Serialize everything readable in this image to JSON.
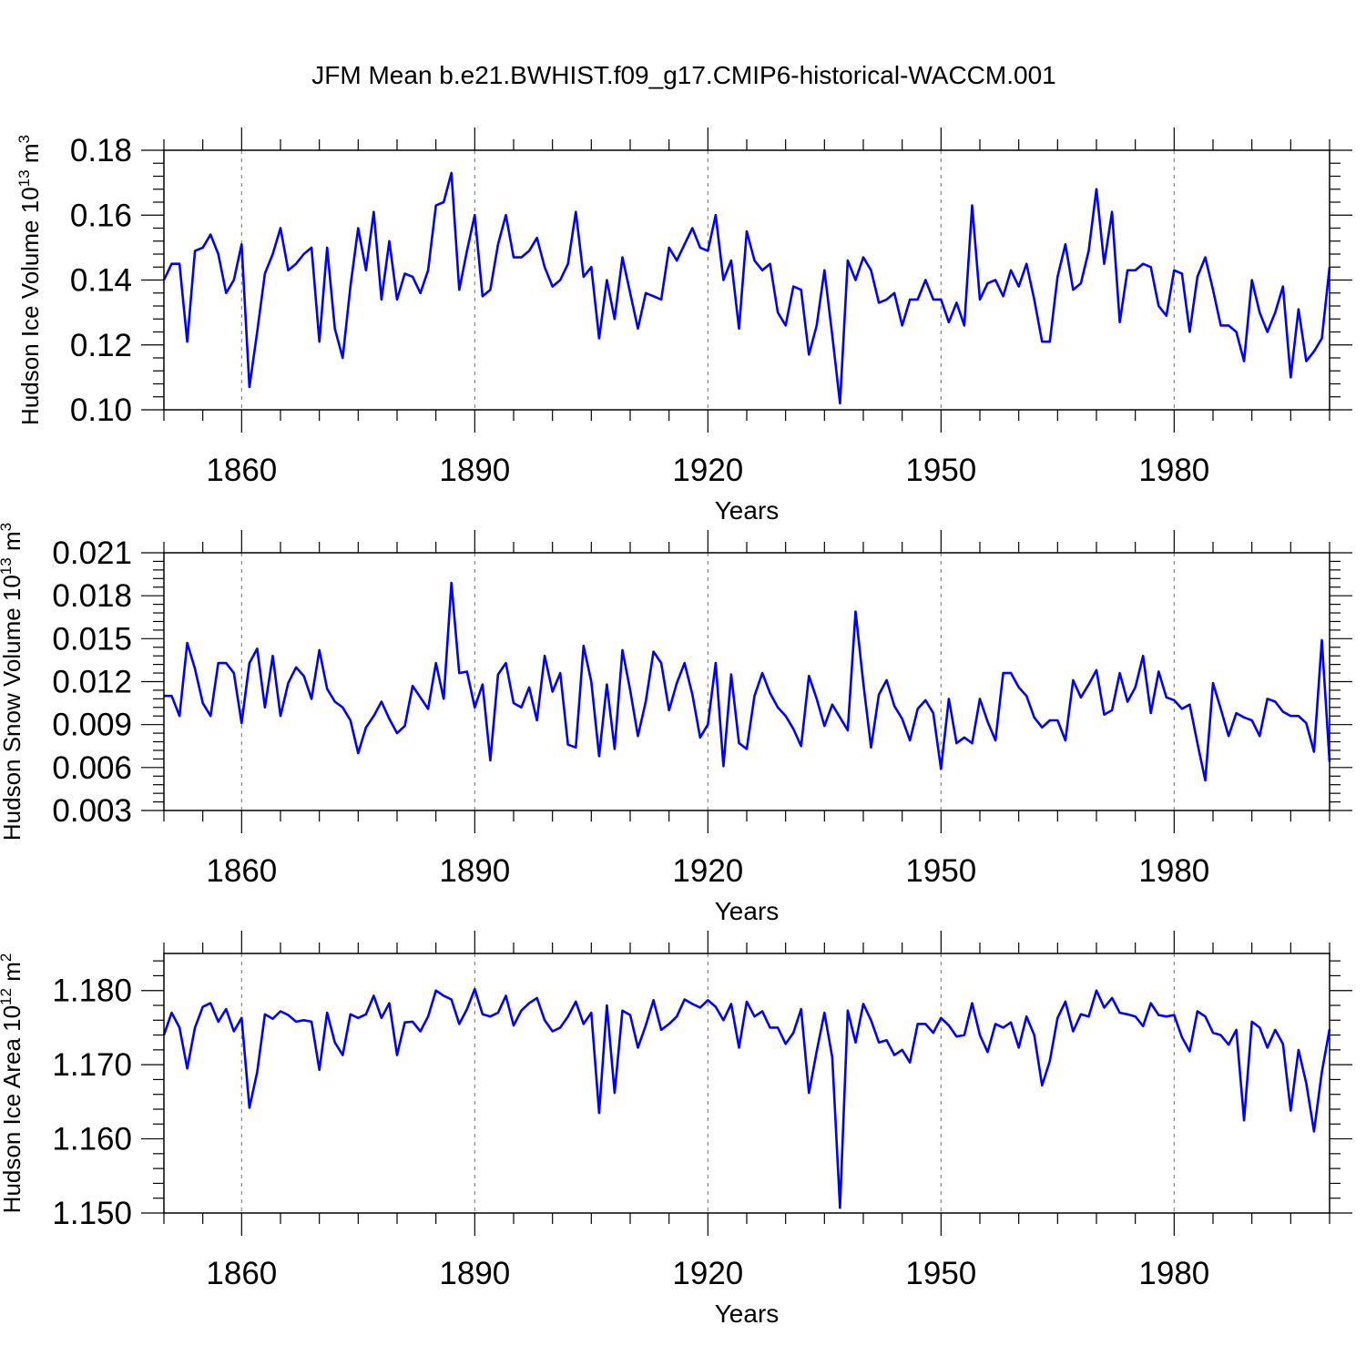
{
  "title": "JFM Mean b.e21.BWHIST.f09_g17.CMIP6-historical-WACCM.001",
  "chart_data": [
    {
      "type": "line",
      "name": "ice-volume",
      "xlabel": "Years",
      "ylabel": "Hudson Ice Volume 10",
      "ylabel_exp": "13",
      "ylabel_unit": " m",
      "ylabel_unit_exp": "3",
      "xlim": [
        1850,
        2000
      ],
      "ylim": [
        0.1,
        0.18
      ],
      "xticks": [
        1860,
        1890,
        1920,
        1950,
        1980
      ],
      "xtick_labels": [
        "1860",
        "1890",
        "1920",
        "1950",
        "1980"
      ],
      "yticks": [
        0.1,
        0.12,
        0.14,
        0.16,
        0.18
      ],
      "ytick_labels": [
        "0.10",
        "0.12",
        "0.14",
        "0.16",
        "0.18"
      ],
      "grid": "dashed vertical at major x ticks",
      "color": "#0000ff",
      "x_start": 1850,
      "values": [
        0.14,
        0.145,
        0.145,
        0.121,
        0.149,
        0.15,
        0.154,
        0.148,
        0.136,
        0.14,
        0.151,
        0.107,
        0.124,
        0.142,
        0.148,
        0.156,
        0.143,
        0.145,
        0.148,
        0.15,
        0.121,
        0.15,
        0.125,
        0.116,
        0.138,
        0.156,
        0.143,
        0.161,
        0.134,
        0.152,
        0.134,
        0.142,
        0.141,
        0.136,
        0.143,
        0.163,
        0.164,
        0.173,
        0.137,
        0.149,
        0.16,
        0.135,
        0.137,
        0.151,
        0.16,
        0.147,
        0.147,
        0.149,
        0.153,
        0.144,
        0.138,
        0.14,
        0.145,
        0.161,
        0.141,
        0.144,
        0.122,
        0.14,
        0.128,
        0.147,
        0.136,
        0.125,
        0.136,
        0.135,
        0.134,
        0.15,
        0.146,
        0.151,
        0.156,
        0.15,
        0.149,
        0.16,
        0.14,
        0.146,
        0.125,
        0.155,
        0.146,
        0.143,
        0.145,
        0.13,
        0.126,
        0.138,
        0.137,
        0.117,
        0.126,
        0.143,
        0.123,
        0.102,
        0.146,
        0.14,
        0.147,
        0.143,
        0.133,
        0.134,
        0.136,
        0.126,
        0.134,
        0.134,
        0.14,
        0.134,
        0.134,
        0.127,
        0.133,
        0.126,
        0.163,
        0.134,
        0.139,
        0.14,
        0.135,
        0.143,
        0.138,
        0.145,
        0.134,
        0.121,
        0.121,
        0.141,
        0.151,
        0.137,
        0.139,
        0.149,
        0.168,
        0.145,
        0.161,
        0.127,
        0.143,
        0.143,
        0.145,
        0.144,
        0.132,
        0.129,
        0.143,
        0.142,
        0.124,
        0.141,
        0.147,
        0.137,
        0.126,
        0.126,
        0.124,
        0.115,
        0.14,
        0.13,
        0.124,
        0.13,
        0.138,
        0.11,
        0.131,
        0.115,
        0.118,
        0.122,
        0.144
      ]
    },
    {
      "type": "line",
      "name": "snow-volume",
      "xlabel": "Years",
      "ylabel": "Hudson Snow Volume 10",
      "ylabel_exp": "13",
      "ylabel_unit": " m",
      "ylabel_unit_exp": "3",
      "xlim": [
        1850,
        2000
      ],
      "ylim": [
        0.003,
        0.021
      ],
      "xticks": [
        1860,
        1890,
        1920,
        1950,
        1980
      ],
      "xtick_labels": [
        "1860",
        "1890",
        "1920",
        "1950",
        "1980"
      ],
      "yticks": [
        0.003,
        0.006,
        0.009,
        0.012,
        0.015,
        0.018,
        0.021
      ],
      "ytick_labels": [
        "0.003",
        "0.006",
        "0.009",
        "0.012",
        "0.015",
        "0.018",
        "0.021"
      ],
      "grid": "dashed vertical at major x ticks",
      "color": "#0000ff",
      "x_start": 1850,
      "values": [
        0.011,
        0.011,
        0.0096,
        0.0147,
        0.0129,
        0.0105,
        0.0096,
        0.0133,
        0.0133,
        0.0126,
        0.0091,
        0.0133,
        0.0143,
        0.0102,
        0.0138,
        0.0096,
        0.0119,
        0.013,
        0.0124,
        0.0108,
        0.0142,
        0.0115,
        0.0106,
        0.0102,
        0.0093,
        0.007,
        0.0088,
        0.0096,
        0.0106,
        0.0094,
        0.0084,
        0.0089,
        0.0117,
        0.0109,
        0.0101,
        0.0133,
        0.0108,
        0.0189,
        0.0126,
        0.0127,
        0.0102,
        0.0118,
        0.0065,
        0.0125,
        0.0133,
        0.0105,
        0.0102,
        0.0116,
        0.0093,
        0.0138,
        0.0113,
        0.0126,
        0.0076,
        0.0074,
        0.0145,
        0.012,
        0.0068,
        0.0118,
        0.0073,
        0.0142,
        0.0114,
        0.0082,
        0.0106,
        0.0141,
        0.0133,
        0.01,
        0.0119,
        0.0133,
        0.0111,
        0.0081,
        0.009,
        0.0133,
        0.0061,
        0.0125,
        0.0077,
        0.0073,
        0.011,
        0.0126,
        0.0112,
        0.0102,
        0.0096,
        0.0087,
        0.0075,
        0.0124,
        0.0108,
        0.0089,
        0.0104,
        0.0095,
        0.0086,
        0.0169,
        0.0119,
        0.0074,
        0.0111,
        0.0121,
        0.0103,
        0.0094,
        0.0079,
        0.0101,
        0.0107,
        0.0098,
        0.0059,
        0.0108,
        0.0077,
        0.0081,
        0.0077,
        0.0108,
        0.0092,
        0.0079,
        0.0126,
        0.0126,
        0.0116,
        0.011,
        0.0095,
        0.0088,
        0.0093,
        0.0093,
        0.0079,
        0.0121,
        0.0109,
        0.0118,
        0.0128,
        0.0097,
        0.01,
        0.0126,
        0.0106,
        0.0116,
        0.0138,
        0.0098,
        0.0127,
        0.0109,
        0.0107,
        0.0101,
        0.0104,
        0.0077,
        0.0051,
        0.0119,
        0.0101,
        0.0082,
        0.0098,
        0.0095,
        0.0093,
        0.0082,
        0.0108,
        0.0106,
        0.0099,
        0.0096,
        0.0096,
        0.0091,
        0.0071,
        0.0149,
        0.0064
      ]
    },
    {
      "type": "line",
      "name": "ice-area",
      "xlabel": "Years",
      "ylabel": "Hudson Ice Area 10",
      "ylabel_exp": "12",
      "ylabel_unit": " m",
      "ylabel_unit_exp": "2",
      "xlim": [
        1850,
        2000
      ],
      "ylim": [
        1.15,
        1.185
      ],
      "xticks": [
        1860,
        1890,
        1920,
        1950,
        1980
      ],
      "xtick_labels": [
        "1860",
        "1890",
        "1920",
        "1950",
        "1980"
      ],
      "yticks": [
        1.15,
        1.16,
        1.17,
        1.18
      ],
      "ytick_labels": [
        "1.150",
        "1.160",
        "1.170",
        "1.180"
      ],
      "grid": "dashed vertical at major x ticks",
      "color": "#0000ff",
      "x_start": 1850,
      "values": [
        1.174,
        1.177,
        1.175,
        1.1695,
        1.175,
        1.1778,
        1.1783,
        1.1758,
        1.1775,
        1.1745,
        1.1763,
        1.1642,
        1.169,
        1.1768,
        1.1762,
        1.1772,
        1.1767,
        1.1758,
        1.176,
        1.1758,
        1.1693,
        1.177,
        1.173,
        1.1713,
        1.1768,
        1.1763,
        1.1768,
        1.1793,
        1.1763,
        1.1783,
        1.1713,
        1.1757,
        1.1758,
        1.1745,
        1.1765,
        1.18,
        1.1793,
        1.1788,
        1.1755,
        1.1775,
        1.1802,
        1.1768,
        1.1765,
        1.177,
        1.1793,
        1.1753,
        1.1773,
        1.1783,
        1.179,
        1.176,
        1.1745,
        1.175,
        1.1765,
        1.1785,
        1.1755,
        1.177,
        1.1635,
        1.178,
        1.1662,
        1.1773,
        1.1767,
        1.1723,
        1.1753,
        1.1787,
        1.1747,
        1.1755,
        1.1765,
        1.1788,
        1.1782,
        1.1777,
        1.1787,
        1.1778,
        1.176,
        1.1782,
        1.1723,
        1.1785,
        1.1765,
        1.1772,
        1.175,
        1.175,
        1.1728,
        1.1743,
        1.1775,
        1.1662,
        1.1718,
        1.177,
        1.171,
        1.1507,
        1.1773,
        1.173,
        1.1782,
        1.176,
        1.173,
        1.1733,
        1.1713,
        1.172,
        1.1703,
        1.1755,
        1.1755,
        1.1743,
        1.1763,
        1.1753,
        1.1738,
        1.174,
        1.1783,
        1.174,
        1.1717,
        1.1755,
        1.175,
        1.1757,
        1.1723,
        1.1765,
        1.174,
        1.1672,
        1.1705,
        1.1763,
        1.1785,
        1.1745,
        1.1768,
        1.1765,
        1.18,
        1.1777,
        1.179,
        1.177,
        1.1768,
        1.1765,
        1.1752,
        1.1783,
        1.1767,
        1.1765,
        1.1767,
        1.1737,
        1.1718,
        1.1772,
        1.1765,
        1.1743,
        1.174,
        1.1727,
        1.1747,
        1.1625,
        1.1758,
        1.175,
        1.1723,
        1.1747,
        1.1728,
        1.1638,
        1.172,
        1.1675,
        1.161,
        1.169,
        1.1748
      ]
    }
  ]
}
